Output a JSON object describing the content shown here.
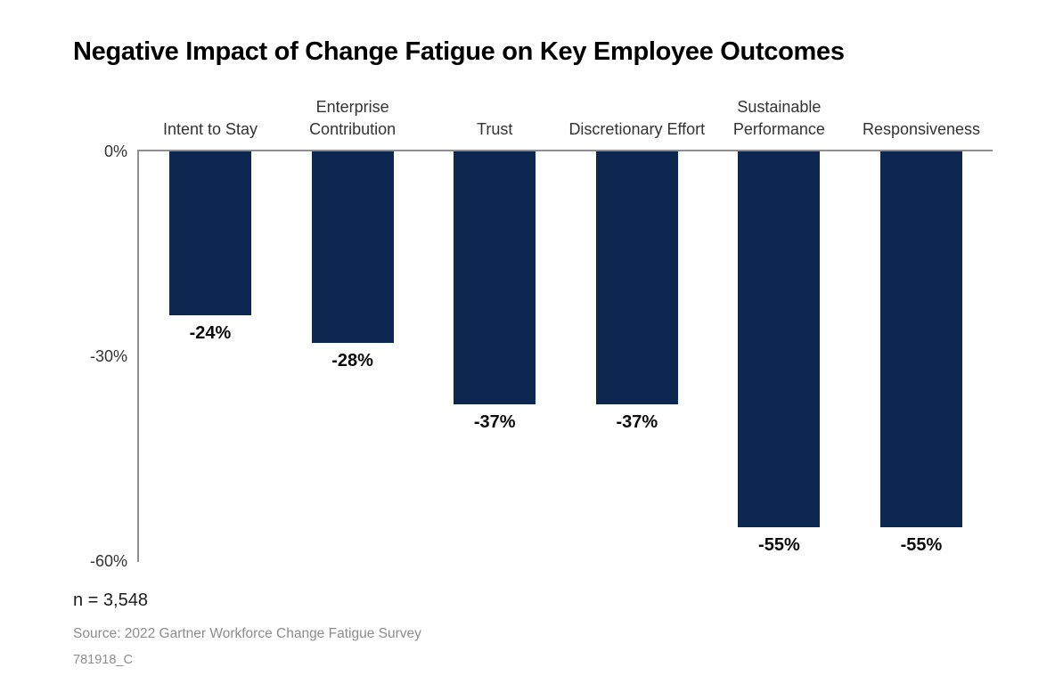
{
  "chart_data": {
    "type": "bar",
    "title": "Negative Impact of Change Fatigue on Key Employee Outcomes",
    "categories": [
      "Intent to Stay",
      "Enterprise Contribution",
      "Trust",
      "Discretionary Effort",
      "Sustainable Performance",
      "Responsiveness"
    ],
    "values": [
      -24,
      -28,
      -37,
      -37,
      -55,
      -55
    ],
    "value_labels": [
      "-24%",
      "-28%",
      "-37%",
      "-37%",
      "-55%",
      "-55%"
    ],
    "xlabel": "",
    "ylabel": "",
    "ylim": [
      -60,
      0
    ],
    "y_ticks": [
      {
        "value": 0,
        "label": "0%"
      },
      {
        "value": -30,
        "label": "-30%"
      },
      {
        "value": -60,
        "label": "-60%"
      }
    ],
    "grid": false,
    "legend": "none",
    "bar_color": "#0c2850",
    "axis_color": "#8f8f8f",
    "background_color": "#ffffff"
  },
  "footer": {
    "sample_size": "n = 3,548",
    "source": "Source: 2022 Gartner Workforce Change Fatigue Survey",
    "code": "781918_C"
  }
}
